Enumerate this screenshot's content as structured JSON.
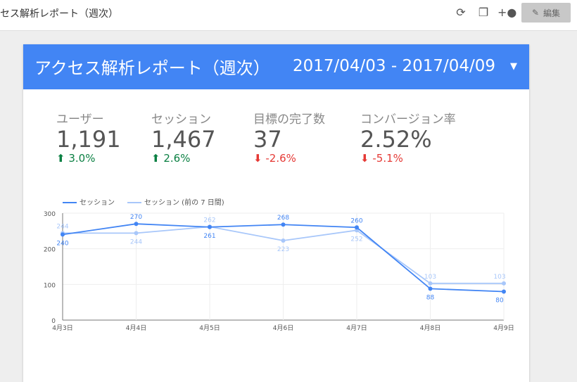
{
  "topbar": {
    "title": "セス解析レポート（週次）",
    "icons": [
      "refresh-icon",
      "copy-icon",
      "add-person-icon"
    ],
    "edit_label": "編集"
  },
  "header": {
    "title": "アクセス解析レポート（週次）",
    "date_range": "2017/04/03 - 2017/04/09",
    "color": "#4285f4"
  },
  "kpis": [
    {
      "label": "ユーザー",
      "value": "1,191",
      "change": "3.0%",
      "direction": "up"
    },
    {
      "label": "セッション",
      "value": "1,467",
      "change": "2.6%",
      "direction": "up"
    },
    {
      "label": "目標の完了数",
      "value": "37",
      "change": "-2.6%",
      "direction": "down"
    },
    {
      "label": "コンバージョン率",
      "value": "2.52%",
      "change": "-5.1%",
      "direction": "down"
    }
  ],
  "chart_data": {
    "type": "line",
    "categories": [
      "4月3日",
      "4月4日",
      "4月5日",
      "4月6日",
      "4月7日",
      "4月8日",
      "4月9日"
    ],
    "series": [
      {
        "name": "セッション",
        "values": [
          240,
          270,
          261,
          268,
          260,
          88,
          80
        ],
        "color": "#4285f4"
      },
      {
        "name": "セッション (前の 7 日間)",
        "values": [
          244,
          244,
          262,
          223,
          252,
          103,
          103
        ],
        "color": "#a8c7fa"
      }
    ],
    "ylim": [
      0,
      300
    ],
    "yticks": [
      0,
      100,
      200,
      300
    ],
    "grid": true,
    "legend": "top-left"
  }
}
